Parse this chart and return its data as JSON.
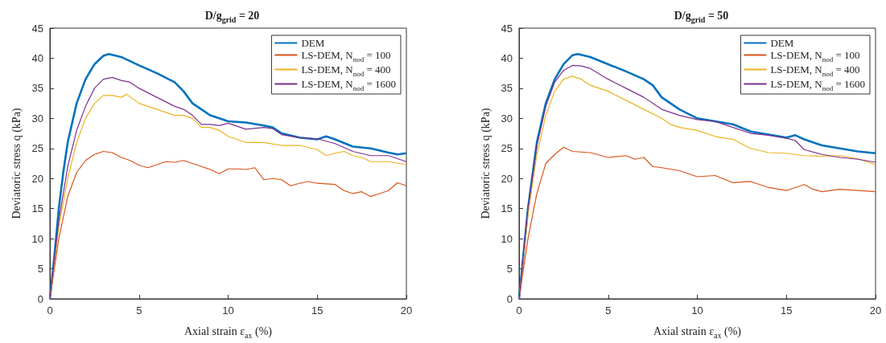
{
  "chart_data": [
    {
      "type": "line",
      "title": "D/g$_{grid}$ = 20",
      "xlabel": "Axial strain ε$_{ax}$ (%)",
      "ylabel": "Deviatoric stress q (kPa)",
      "xlim": [
        0,
        20
      ],
      "ylim": [
        0,
        45
      ],
      "xticks": [
        0,
        5,
        10,
        15,
        20
      ],
      "yticks": [
        0,
        5,
        10,
        15,
        20,
        25,
        30,
        35,
        40,
        45
      ],
      "grid": false,
      "legend": "top right",
      "series": [
        {
          "name": "DEM",
          "color": "#0072bd",
          "x": [
            0,
            0.25,
            0.5,
            0.75,
            1,
            1.5,
            2,
            2.5,
            3,
            3.3,
            4,
            5,
            6,
            7,
            7.5,
            8,
            8.5,
            9,
            9.5,
            10,
            11,
            12,
            12.5,
            13,
            14,
            15,
            15.5,
            16,
            17,
            18,
            19,
            19.5,
            20
          ],
          "values": [
            0,
            7,
            15,
            21,
            26,
            32.5,
            36.5,
            39,
            40.4,
            40.7,
            40.2,
            38.8,
            37.5,
            36,
            34.5,
            32.5,
            31.5,
            30.5,
            30,
            29.5,
            29.3,
            28.8,
            28.5,
            27.5,
            26.8,
            26.5,
            27,
            26.5,
            25.3,
            25,
            24.3,
            24,
            24.2
          ]
        },
        {
          "name": "LS-DEM, N$_{nod}$ = 100",
          "color": "#d95319",
          "x": [
            0,
            0.5,
            1,
            1.5,
            2,
            2.5,
            3,
            3.5,
            4,
            4.5,
            5,
            5.5,
            6,
            6.5,
            7,
            7.5,
            8,
            8.5,
            9,
            9.5,
            10,
            10.5,
            11,
            11.5,
            12,
            12.5,
            13,
            13.5,
            14,
            14.5,
            15,
            16,
            16.5,
            17,
            17.5,
            18,
            18.5,
            19,
            19.5,
            20
          ],
          "values": [
            0,
            10,
            17,
            21,
            23,
            24,
            24.5,
            24.3,
            23.5,
            23,
            22.2,
            21.8,
            22.3,
            22.8,
            22.7,
            23,
            22.5,
            22,
            21.5,
            20.8,
            21.6,
            21.6,
            21.5,
            21.8,
            19.8,
            20,
            19.8,
            18.8,
            19.2,
            19.5,
            19.2,
            19,
            18,
            17.5,
            17.8,
            17,
            17.5,
            18,
            19.3,
            18.8
          ]
        },
        {
          "name": "LS-DEM, N$_{nod}$ = 400",
          "color": "#edb120",
          "x": [
            0,
            0.5,
            1,
            1.5,
            2,
            2.5,
            3,
            3.5,
            4,
            4.3,
            5,
            6,
            7,
            7.5,
            8,
            8.5,
            9,
            9.5,
            10,
            11,
            12,
            13,
            14,
            15,
            15.5,
            16,
            16.5,
            17,
            17.5,
            18,
            19,
            20
          ],
          "values": [
            0,
            12,
            20,
            26,
            30,
            32.5,
            33.8,
            33.8,
            33.5,
            34,
            32.5,
            31.5,
            30.5,
            30.5,
            30,
            28.5,
            28.5,
            28,
            27,
            26,
            26,
            25.5,
            25.5,
            24.8,
            23.8,
            24.2,
            24.5,
            23.8,
            23.5,
            22.8,
            22.8,
            22.3
          ]
        },
        {
          "name": "LS-DEM, N$_{nod}$ = 1600",
          "color": "#7e2f8e",
          "x": [
            0,
            0.5,
            1,
            1.5,
            2,
            2.5,
            3,
            3.5,
            4,
            4.5,
            5,
            6,
            7,
            7.5,
            8,
            8.5,
            9,
            9.5,
            10,
            11,
            12,
            12.5,
            13,
            14,
            15,
            16,
            17,
            18,
            19,
            20
          ],
          "values": [
            0,
            13,
            22,
            28,
            32,
            35,
            36.5,
            36.8,
            36.3,
            36,
            35,
            33.5,
            32,
            31.5,
            30.5,
            29,
            29,
            28.8,
            29.2,
            28.2,
            28.5,
            28.3,
            27.3,
            26.8,
            26.6,
            25.8,
            24.5,
            23.8,
            23.8,
            22.8
          ]
        }
      ]
    },
    {
      "type": "line",
      "title": "D/g$_{grid}$ = 50",
      "xlabel": "Axial strain ε$_{ax}$ (%)",
      "ylabel": "Deviatoric stress q (kPa)",
      "xlim": [
        0,
        20
      ],
      "ylim": [
        0,
        45
      ],
      "xticks": [
        0,
        5,
        10,
        15,
        20
      ],
      "yticks": [
        0,
        5,
        10,
        15,
        20,
        25,
        30,
        35,
        40,
        45
      ],
      "grid": false,
      "legend": "top right",
      "series": [
        {
          "name": "DEM",
          "color": "#0072bd",
          "x": [
            0,
            0.5,
            1,
            1.5,
            2,
            2.5,
            3,
            3.3,
            4,
            5,
            6,
            7,
            7.5,
            8,
            9,
            10,
            11,
            12,
            13,
            14,
            15,
            15.5,
            16,
            17,
            18,
            19,
            20
          ],
          "values": [
            0,
            15,
            26,
            32.5,
            36.5,
            39,
            40.5,
            40.7,
            40.2,
            39,
            37.8,
            36.5,
            35.5,
            33.5,
            31.5,
            30,
            29.5,
            29,
            27.8,
            27.3,
            26.8,
            27.2,
            26.5,
            25.5,
            25,
            24.5,
            24.2
          ]
        },
        {
          "name": "LS-DEM, N$_{nod}$ = 100",
          "color": "#d95319",
          "x": [
            0,
            0.5,
            1,
            1.5,
            2,
            2.5,
            3,
            4,
            5,
            6,
            6.5,
            7,
            7.5,
            8,
            9,
            10,
            11,
            12,
            13,
            14,
            15,
            16,
            16.5,
            17,
            18,
            19,
            20
          ],
          "values": [
            0,
            10,
            17.5,
            22.5,
            24,
            25.2,
            24.5,
            24.3,
            23.5,
            23.8,
            23.2,
            23.5,
            22,
            21.8,
            21.3,
            20.3,
            20.5,
            19.3,
            19.5,
            18.5,
            18,
            19,
            18.2,
            17.8,
            18.2,
            18,
            17.8
          ]
        },
        {
          "name": "LS-DEM, N$_{nod}$ = 400",
          "color": "#edb120",
          "x": [
            0,
            0.5,
            1,
            1.5,
            2,
            2.5,
            3,
            3.5,
            4,
            5,
            6,
            7,
            8,
            8.5,
            9,
            10,
            11,
            12,
            13,
            14,
            15,
            16,
            17,
            18,
            19,
            20
          ],
          "values": [
            0,
            14,
            24,
            30.5,
            34.5,
            36.5,
            37,
            36.5,
            35.5,
            34.5,
            33,
            31.5,
            30,
            29,
            28.5,
            28,
            27,
            26.5,
            25,
            24.3,
            24.2,
            23.8,
            23.7,
            23.8,
            23.3,
            22.3
          ]
        },
        {
          "name": "LS-DEM, N$_{nod}$ = 1600",
          "color": "#7e2f8e",
          "x": [
            0,
            0.5,
            1,
            1.5,
            2,
            2.5,
            3,
            3.5,
            4,
            5,
            6,
            7,
            7.5,
            8,
            9,
            10,
            11,
            12,
            13,
            14,
            15,
            15.5,
            16,
            17,
            18,
            19,
            20
          ],
          "values": [
            0,
            15,
            25.5,
            32,
            36,
            38,
            38.8,
            38.7,
            38.3,
            36.5,
            35,
            33.5,
            32.5,
            31.5,
            30.5,
            29.8,
            29.5,
            28.5,
            27.5,
            27.2,
            26.7,
            26.3,
            24.8,
            24,
            23.5,
            23.2,
            22.7
          ]
        }
      ]
    }
  ]
}
